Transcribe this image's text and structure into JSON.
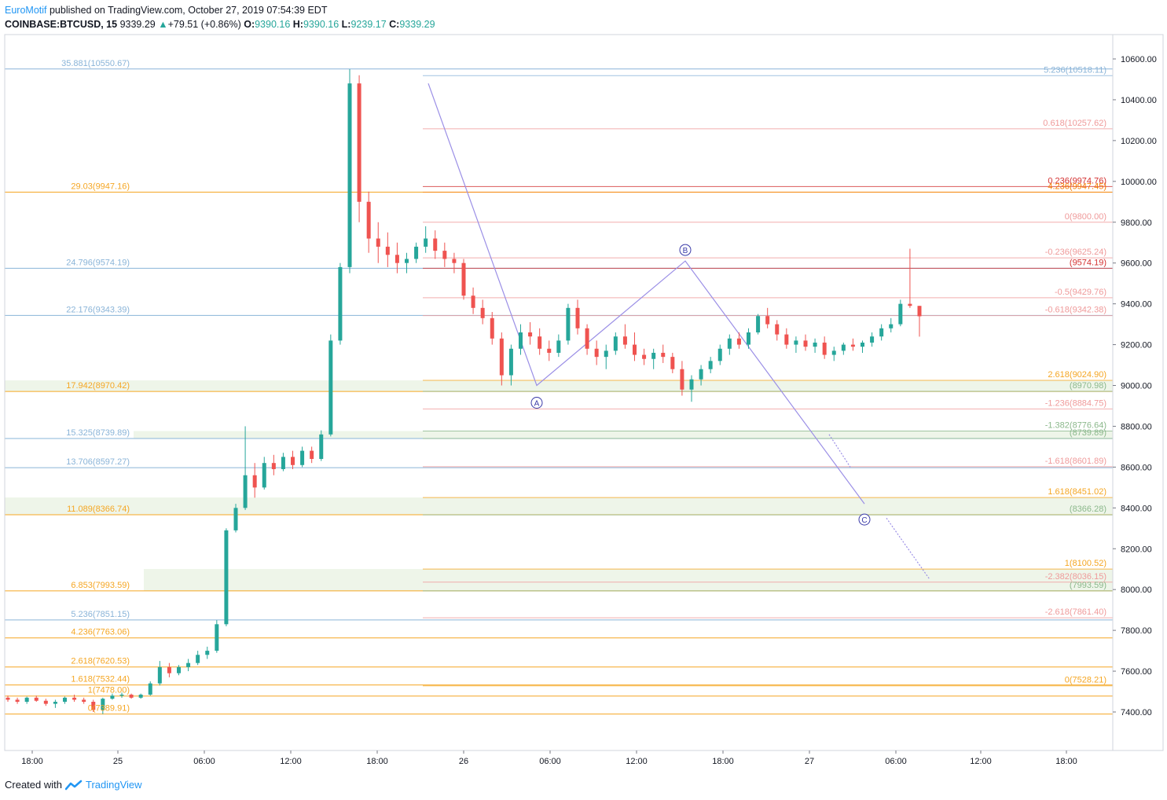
{
  "header": {
    "author": "EuroMotif",
    "published": "published on TradingView.com, October 27, 2019 07:54:39 EDT",
    "symbol": "COINBASE:BTCUSD, 15",
    "last": "9339.29",
    "change_arrow": "▲",
    "change": "+79.51 (+0.86%)",
    "o_label": "O:",
    "o": "9390.16",
    "h_label": "H:",
    "h": "9390.16",
    "l_label": "L:",
    "l": "9239.17",
    "c_label": "C:",
    "c": "9339.29"
  },
  "footer": {
    "created": "Created with",
    "brand": "TradingView"
  },
  "colors": {
    "up": "#26a69a",
    "down": "#ef5350",
    "wave": "#9b8fe6",
    "blue_fib": "#8ab4d8",
    "orange_fib": "#f5a623",
    "red_fib": "#ef9a9a",
    "green_fib": "#8bb88b"
  },
  "chart_data": {
    "type": "candlestick",
    "ylim": [
      7200,
      10700
    ],
    "y_ticks": [
      "10600.00",
      "10400.00",
      "10200.00",
      "10000.00",
      "9800.00",
      "9600.00",
      "9400.00",
      "9200.00",
      "9000.00",
      "8800.00",
      "8600.00",
      "8400.00",
      "8200.00",
      "8000.00",
      "7800.00",
      "7600.00",
      "7400.00"
    ],
    "x_ticks": [
      "18:00",
      "25",
      "06:00",
      "12:00",
      "18:00",
      "26",
      "06:00",
      "12:00",
      "18:00",
      "27",
      "06:00",
      "12:00",
      "18:00"
    ],
    "candles_approx": [
      [
        7470,
        7480,
        7450,
        7460
      ],
      [
        7460,
        7470,
        7440,
        7450
      ],
      [
        7450,
        7475,
        7440,
        7470
      ],
      [
        7470,
        7480,
        7450,
        7455
      ],
      [
        7455,
        7465,
        7430,
        7440
      ],
      [
        7440,
        7460,
        7420,
        7450
      ],
      [
        7450,
        7475,
        7440,
        7470
      ],
      [
        7470,
        7485,
        7450,
        7460
      ],
      [
        7460,
        7470,
        7440,
        7450
      ],
      [
        7450,
        7460,
        7400,
        7410
      ],
      [
        7410,
        7470,
        7390,
        7465
      ],
      [
        7465,
        7490,
        7460,
        7480
      ],
      [
        7480,
        7495,
        7470,
        7485
      ],
      [
        7485,
        7490,
        7465,
        7470
      ],
      [
        7470,
        7490,
        7465,
        7485
      ],
      [
        7485,
        7550,
        7480,
        7540
      ],
      [
        7540,
        7650,
        7530,
        7620
      ],
      [
        7620,
        7640,
        7570,
        7590
      ],
      [
        7590,
        7630,
        7580,
        7620
      ],
      [
        7620,
        7660,
        7600,
        7640
      ],
      [
        7640,
        7700,
        7630,
        7680
      ],
      [
        7680,
        7720,
        7660,
        7700
      ],
      [
        7700,
        7850,
        7690,
        7830
      ],
      [
        7830,
        8300,
        7820,
        8290
      ],
      [
        8290,
        8420,
        8280,
        8400
      ],
      [
        8400,
        8800,
        8390,
        8560
      ],
      [
        8560,
        8620,
        8450,
        8500
      ],
      [
        8500,
        8650,
        8490,
        8620
      ],
      [
        8620,
        8660,
        8560,
        8590
      ],
      [
        8590,
        8670,
        8580,
        8650
      ],
      [
        8650,
        8680,
        8590,
        8610
      ],
      [
        8610,
        8700,
        8600,
        8680
      ],
      [
        8680,
        8700,
        8620,
        8640
      ],
      [
        8640,
        8780,
        8630,
        8760
      ],
      [
        8760,
        9250,
        8750,
        9220
      ],
      [
        9220,
        9600,
        9200,
        9580
      ],
      [
        9580,
        10550,
        9550,
        10480
      ],
      [
        10480,
        10520,
        9800,
        9900
      ],
      [
        9900,
        9950,
        9650,
        9720
      ],
      [
        9720,
        9800,
        9600,
        9680
      ],
      [
        9680,
        9750,
        9580,
        9640
      ],
      [
        9640,
        9700,
        9550,
        9600
      ],
      [
        9600,
        9650,
        9550,
        9620
      ],
      [
        9620,
        9700,
        9600,
        9680
      ],
      [
        9680,
        9780,
        9650,
        9720
      ],
      [
        9720,
        9760,
        9620,
        9660
      ],
      [
        9660,
        9700,
        9580,
        9620
      ],
      [
        9620,
        9650,
        9550,
        9600
      ],
      [
        9600,
        9620,
        9420,
        9440
      ],
      [
        9440,
        9480,
        9350,
        9380
      ],
      [
        9380,
        9420,
        9300,
        9330
      ],
      [
        9330,
        9360,
        9200,
        9230
      ],
      [
        9230,
        9260,
        9000,
        9050
      ],
      [
        9050,
        9200,
        9000,
        9180
      ],
      [
        9180,
        9300,
        9150,
        9260
      ],
      [
        9260,
        9310,
        9200,
        9240
      ],
      [
        9240,
        9280,
        9150,
        9180
      ],
      [
        9180,
        9220,
        9120,
        9160
      ],
      [
        9160,
        9250,
        9140,
        9220
      ],
      [
        9220,
        9400,
        9200,
        9380
      ],
      [
        9380,
        9420,
        9250,
        9280
      ],
      [
        9280,
        9300,
        9150,
        9180
      ],
      [
        9180,
        9220,
        9100,
        9140
      ],
      [
        9140,
        9200,
        9080,
        9170
      ],
      [
        9170,
        9260,
        9150,
        9240
      ],
      [
        9240,
        9300,
        9180,
        9200
      ],
      [
        9200,
        9260,
        9120,
        9150
      ],
      [
        9150,
        9180,
        9100,
        9130
      ],
      [
        9130,
        9180,
        9080,
        9160
      ],
      [
        9160,
        9200,
        9110,
        9140
      ],
      [
        9140,
        9160,
        9060,
        9080
      ],
      [
        9080,
        9120,
        8950,
        8980
      ],
      [
        8980,
        9050,
        8920,
        9030
      ],
      [
        9030,
        9100,
        9000,
        9080
      ],
      [
        9080,
        9140,
        9060,
        9120
      ],
      [
        9120,
        9200,
        9100,
        9180
      ],
      [
        9180,
        9250,
        9150,
        9230
      ],
      [
        9230,
        9260,
        9180,
        9200
      ],
      [
        9200,
        9280,
        9180,
        9260
      ],
      [
        9260,
        9350,
        9250,
        9340
      ],
      [
        9340,
        9380,
        9280,
        9300
      ],
      [
        9300,
        9320,
        9220,
        9250
      ],
      [
        9250,
        9280,
        9180,
        9200
      ],
      [
        9200,
        9240,
        9160,
        9220
      ],
      [
        9220,
        9250,
        9170,
        9190
      ],
      [
        9190,
        9230,
        9160,
        9210
      ],
      [
        9210,
        9240,
        9130,
        9150
      ],
      [
        9150,
        9190,
        9120,
        9170
      ],
      [
        9170,
        9210,
        9150,
        9200
      ],
      [
        9200,
        9230,
        9170,
        9190
      ],
      [
        9190,
        9220,
        9160,
        9210
      ],
      [
        9210,
        9260,
        9190,
        9240
      ],
      [
        9240,
        9300,
        9220,
        9280
      ],
      [
        9280,
        9330,
        9260,
        9300
      ],
      [
        9300,
        9420,
        9290,
        9400
      ],
      [
        9400,
        9670,
        9380,
        9390
      ],
      [
        9390,
        9390,
        9239,
        9339
      ]
    ]
  },
  "left_fibs": [
    {
      "label": "35.881(10550.67)",
      "value": 10550.67,
      "color": "#8ab4d8"
    },
    {
      "label": "29.03(9947.16)",
      "value": 9947.16,
      "color": "#f5a623"
    },
    {
      "label": "24.796(9574.19)",
      "value": 9574.19,
      "color": "#8ab4d8"
    },
    {
      "label": "22.176(9343.39)",
      "value": 9343.39,
      "color": "#8ab4d8"
    },
    {
      "label": "17.942(8970.42)",
      "value": 8970.42,
      "color": "#f5a623"
    },
    {
      "label": "15.325(8739.89)",
      "value": 8739.89,
      "color": "#8ab4d8"
    },
    {
      "label": "13.706(8597.27)",
      "value": 8597.27,
      "color": "#8ab4d8"
    },
    {
      "label": "11.089(8366.74)",
      "value": 8366.74,
      "color": "#f5a623"
    },
    {
      "label": "6.853(7993.59)",
      "value": 7993.59,
      "color": "#f5a623"
    },
    {
      "label": "5.236(7851.15)",
      "value": 7851.15,
      "color": "#8ab4d8"
    },
    {
      "label": "4.236(7763.06)",
      "value": 7763.06,
      "color": "#f5a623"
    },
    {
      "label": "2.618(7620.53)",
      "value": 7620.53,
      "color": "#f5a623"
    },
    {
      "label": "1.618(7532.44)",
      "value": 7532.44,
      "color": "#f5a623"
    },
    {
      "label": "1(7478.00)",
      "value": 7478.0,
      "color": "#f5a623"
    },
    {
      "label": "0(7389.91)",
      "value": 7389.91,
      "color": "#f5a623"
    }
  ],
  "right_fibs": [
    {
      "label": "5.236(10518.11)",
      "value": 10518.11,
      "color": "#8ab4d8"
    },
    {
      "label": "0.618(10257.62)",
      "value": 10257.62,
      "color": "#ef9a9a"
    },
    {
      "label": "0.236(9974.76)",
      "value": 9974.76,
      "color": "#d32f2f"
    },
    {
      "label": "4.236(9947.45)",
      "value": 9947.45,
      "color": "#f57c00"
    },
    {
      "label": "0(9800.00)",
      "value": 9800.0,
      "color": "#ef9a9a"
    },
    {
      "label": "-0.236(9625.24)",
      "value": 9625.24,
      "color": "#ef9a9a"
    },
    {
      "label": "(9574.19)",
      "value": 9574.19,
      "color": "#d32f2f"
    },
    {
      "label": "-0.5(9429.76)",
      "value": 9429.76,
      "color": "#ef9a9a"
    },
    {
      "label": "-0.618(9342.38)",
      "value": 9342.38,
      "color": "#ef9a9a"
    },
    {
      "label": "2.618(9024.90)",
      "value": 9024.9,
      "color": "#f5a623"
    },
    {
      "label": "(8970.98)",
      "value": 8970.98,
      "color": "#8bb88b"
    },
    {
      "label": "-1.236(8884.75)",
      "value": 8884.75,
      "color": "#ef9a9a"
    },
    {
      "label": "-1.382(8776.64)",
      "value": 8776.64,
      "color": "#8bb88b"
    },
    {
      "label": "(8739.89)",
      "value": 8739.89,
      "color": "#8bb88b"
    },
    {
      "label": "-1.618(8601.89)",
      "value": 8601.89,
      "color": "#ef9a9a"
    },
    {
      "label": "1.618(8451.02)",
      "value": 8451.02,
      "color": "#f5a623"
    },
    {
      "label": "(8366.28)",
      "value": 8366.28,
      "color": "#8bb88b"
    },
    {
      "label": "1(8100.52)",
      "value": 8100.52,
      "color": "#f5a623"
    },
    {
      "label": "-2.382(8036.15)",
      "value": 8036.15,
      "color": "#ef9a9a"
    },
    {
      "label": "(7993.59)",
      "value": 7993.59,
      "color": "#8bb88b"
    },
    {
      "label": "-2.618(7861.40)",
      "value": 7861.4,
      "color": "#ef9a9a"
    },
    {
      "label": "0(7528.21)",
      "value": 7528.21,
      "color": "#f5a623"
    }
  ],
  "waves": [
    {
      "label": "A",
      "value": 9000
    },
    {
      "label": "B",
      "value": 9610
    },
    {
      "label": "C",
      "value": 8420
    }
  ]
}
